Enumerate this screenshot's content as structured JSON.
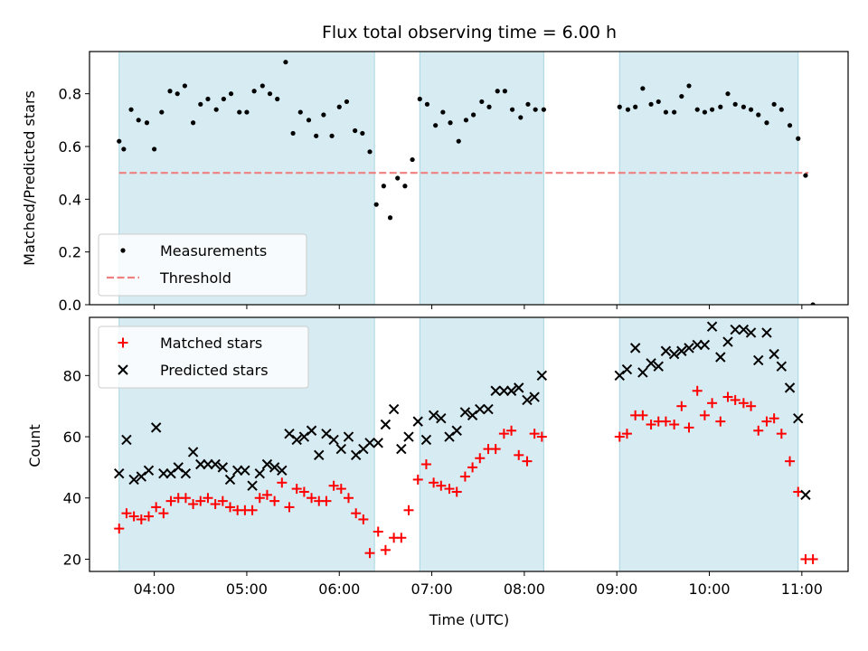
{
  "chart_data": [
    {
      "type": "scatter",
      "title": "Flux total observing time = 6.00 h",
      "xlabel": "",
      "ylabel": "Matched/Predicted stars",
      "xlim_hours": [
        3.3,
        11.5
      ],
      "ylim": [
        0,
        0.96
      ],
      "yticks": [
        0.0,
        0.2,
        0.4,
        0.6,
        0.8
      ],
      "ytick_labels": [
        "0.0",
        "0.2",
        "0.4",
        "0.6",
        "0.8"
      ],
      "shaded_intervals_hours": [
        [
          3.62,
          6.38
        ],
        [
          6.87,
          8.21
        ],
        [
          9.03,
          10.96
        ]
      ],
      "threshold": {
        "name": "Threshold",
        "value": 0.5,
        "x_range_hours": [
          3.62,
          11.07
        ],
        "color": "#f08080"
      },
      "series": [
        {
          "name": "Measurements",
          "marker": "dot",
          "color": "#000000",
          "x_hours": [
            3.62,
            3.67,
            3.75,
            3.83,
            3.92,
            4.0,
            4.08,
            4.17,
            4.25,
            4.33,
            4.42,
            4.5,
            4.58,
            4.67,
            4.75,
            4.83,
            4.92,
            5.0,
            5.08,
            5.17,
            5.25,
            5.33,
            5.42,
            5.5,
            5.58,
            5.67,
            5.75,
            5.83,
            5.92,
            6.0,
            6.08,
            6.17,
            6.25,
            6.33,
            6.4,
            6.48,
            6.55,
            6.63,
            6.71,
            6.79,
            6.87,
            6.95,
            7.04,
            7.12,
            7.2,
            7.29,
            7.37,
            7.45,
            7.54,
            7.62,
            7.71,
            7.79,
            7.87,
            7.96,
            8.04,
            8.12,
            8.21,
            9.03,
            9.12,
            9.2,
            9.28,
            9.37,
            9.45,
            9.53,
            9.62,
            9.7,
            9.78,
            9.87,
            9.95,
            10.03,
            10.12,
            10.2,
            10.28,
            10.37,
            10.45,
            10.53,
            10.62,
            10.7,
            10.78,
            10.87,
            10.96,
            11.04,
            11.12
          ],
          "y": [
            0.62,
            0.59,
            0.74,
            0.7,
            0.69,
            0.59,
            0.73,
            0.81,
            0.8,
            0.83,
            0.69,
            0.76,
            0.78,
            0.74,
            0.78,
            0.8,
            0.73,
            0.73,
            0.81,
            0.83,
            0.8,
            0.78,
            0.92,
            0.65,
            0.73,
            0.7,
            0.64,
            0.72,
            0.64,
            0.75,
            0.77,
            0.66,
            0.65,
            0.58,
            0.38,
            0.45,
            0.33,
            0.48,
            0.45,
            0.55,
            0.78,
            0.76,
            0.68,
            0.73,
            0.69,
            0.62,
            0.7,
            0.72,
            0.77,
            0.75,
            0.81,
            0.81,
            0.74,
            0.71,
            0.76,
            0.74,
            0.74,
            0.75,
            0.74,
            0.75,
            0.82,
            0.76,
            0.77,
            0.73,
            0.73,
            0.79,
            0.83,
            0.74,
            0.73,
            0.74,
            0.75,
            0.8,
            0.76,
            0.75,
            0.74,
            0.72,
            0.69,
            0.76,
            0.74,
            0.68,
            0.63,
            0.49,
            0.0
          ]
        }
      ],
      "legend": {
        "location": "lower-left",
        "entries": [
          "Measurements",
          "Threshold"
        ]
      }
    },
    {
      "type": "scatter",
      "xlabel": "Time (UTC)",
      "ylabel": "Count",
      "xlim_hours": [
        3.3,
        11.5
      ],
      "xticks_hours": [
        4,
        5,
        6,
        7,
        8,
        9,
        10,
        11
      ],
      "xtick_labels": [
        "04:00",
        "05:00",
        "06:00",
        "07:00",
        "08:00",
        "09:00",
        "10:00",
        "11:00"
      ],
      "ylim": [
        16,
        99
      ],
      "yticks": [
        20,
        40,
        60,
        80
      ],
      "ytick_labels": [
        "20",
        "40",
        "60",
        "80"
      ],
      "shaded_intervals_hours": [
        [
          3.62,
          6.38
        ],
        [
          6.87,
          8.21
        ],
        [
          9.03,
          10.96
        ]
      ],
      "series": [
        {
          "name": "Matched stars",
          "marker": "plus",
          "color": "#ff0000",
          "x_hours": [
            3.62,
            3.7,
            3.78,
            3.86,
            3.94,
            4.02,
            4.1,
            4.18,
            4.26,
            4.34,
            4.42,
            4.5,
            4.58,
            4.66,
            4.74,
            4.82,
            4.9,
            4.98,
            5.06,
            5.14,
            5.22,
            5.3,
            5.38,
            5.46,
            5.54,
            5.62,
            5.7,
            5.78,
            5.86,
            5.94,
            6.02,
            6.1,
            6.18,
            6.26,
            6.33,
            6.42,
            6.5,
            6.59,
            6.67,
            6.75,
            6.85,
            6.94,
            7.02,
            7.1,
            7.19,
            7.27,
            7.36,
            7.44,
            7.52,
            7.61,
            7.69,
            7.78,
            7.86,
            7.94,
            8.03,
            8.11,
            8.19,
            9.03,
            9.11,
            9.2,
            9.28,
            9.37,
            9.45,
            9.53,
            9.62,
            9.7,
            9.78,
            9.87,
            9.95,
            10.03,
            10.12,
            10.2,
            10.28,
            10.37,
            10.45,
            10.53,
            10.62,
            10.7,
            10.78,
            10.87,
            10.96,
            11.04,
            11.12
          ],
          "y": [
            30,
            35,
            34,
            33,
            34,
            37,
            35,
            39,
            40,
            40,
            38,
            39,
            40,
            38,
            39,
            37,
            36,
            36,
            36,
            40,
            41,
            39,
            45,
            37,
            43,
            42,
            40,
            39,
            39,
            44,
            43,
            40,
            35,
            33,
            22,
            29,
            23,
            27,
            27,
            36,
            46,
            51,
            45,
            44,
            43,
            42,
            47,
            50,
            53,
            56,
            56,
            61,
            62,
            54,
            52,
            61,
            60,
            60,
            61,
            67,
            67,
            64,
            65,
            65,
            64,
            70,
            63,
            75,
            67,
            71,
            65,
            73,
            72,
            71,
            70,
            62,
            65,
            66,
            61,
            52,
            42,
            20,
            20
          ]
        },
        {
          "name": "Predicted stars",
          "marker": "x",
          "color": "#000000",
          "x_hours": [
            3.62,
            3.7,
            3.78,
            3.86,
            3.94,
            4.02,
            4.1,
            4.18,
            4.26,
            4.34,
            4.42,
            4.5,
            4.58,
            4.66,
            4.74,
            4.82,
            4.9,
            4.98,
            5.06,
            5.14,
            5.22,
            5.3,
            5.38,
            5.46,
            5.54,
            5.62,
            5.7,
            5.78,
            5.86,
            5.94,
            6.02,
            6.1,
            6.18,
            6.26,
            6.33,
            6.42,
            6.5,
            6.59,
            6.67,
            6.75,
            6.85,
            6.94,
            7.02,
            7.1,
            7.19,
            7.27,
            7.36,
            7.44,
            7.52,
            7.61,
            7.69,
            7.78,
            7.86,
            7.94,
            8.03,
            8.11,
            8.19,
            9.03,
            9.11,
            9.2,
            9.28,
            9.37,
            9.45,
            9.53,
            9.62,
            9.7,
            9.78,
            9.87,
            9.95,
            10.03,
            10.12,
            10.2,
            10.28,
            10.37,
            10.45,
            10.53,
            10.62,
            10.7,
            10.78,
            10.87,
            10.96,
            11.04
          ],
          "y": [
            48,
            59,
            46,
            47,
            49,
            63,
            48,
            48,
            50,
            48,
            55,
            51,
            51,
            51,
            50,
            46,
            49,
            49,
            44,
            48,
            51,
            50,
            49,
            61,
            59,
            60,
            62,
            54,
            61,
            59,
            56,
            60,
            54,
            56,
            58,
            58,
            64,
            69,
            56,
            60,
            65,
            59,
            67,
            66,
            60,
            62,
            68,
            67,
            69,
            69,
            75,
            75,
            75,
            76,
            72,
            73,
            80,
            80,
            82,
            89,
            81,
            84,
            83,
            88,
            87,
            88,
            89,
            90,
            90,
            96,
            86,
            91,
            95,
            95,
            94,
            85,
            94,
            87,
            83,
            76,
            66,
            41
          ]
        }
      ],
      "legend": {
        "location": "upper-left",
        "entries": [
          "Matched stars",
          "Predicted stars"
        ]
      }
    }
  ]
}
